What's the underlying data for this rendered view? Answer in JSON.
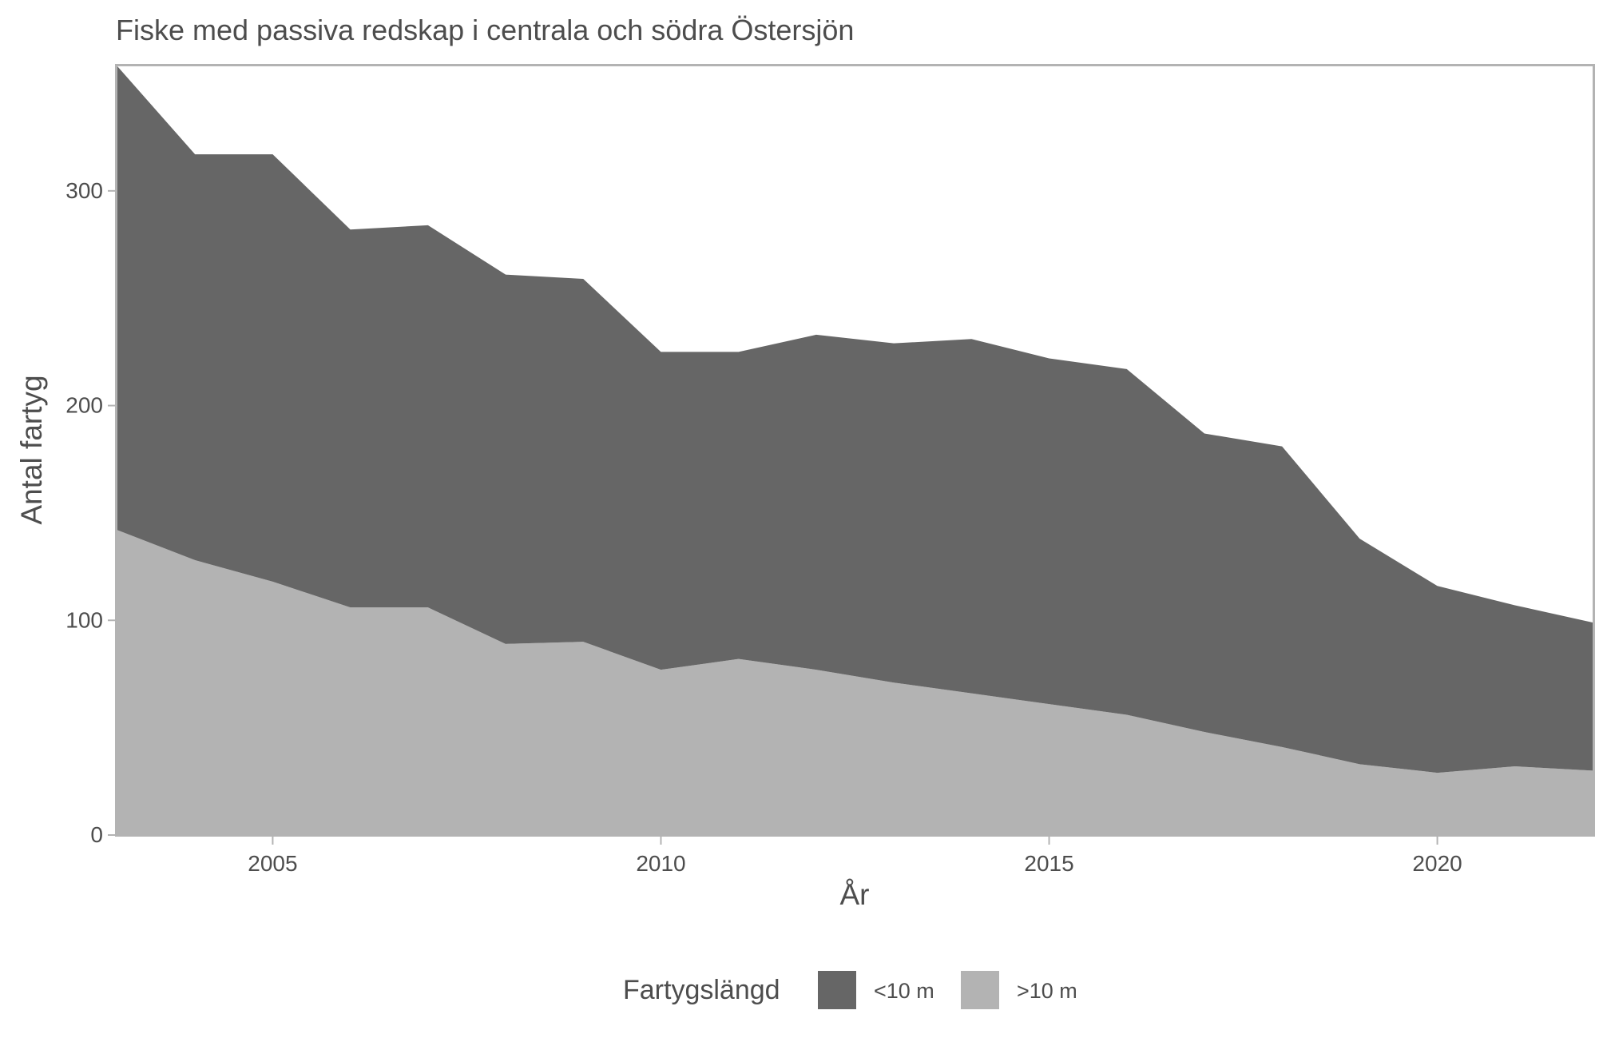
{
  "chart_data": {
    "type": "area",
    "stacked": true,
    "title": "Fiske med passiva redskap i centrala och södra Östersjön",
    "xlabel": "År",
    "ylabel": "Antal fartyg",
    "xlim": [
      2003,
      2022
    ],
    "ylim": [
      0,
      358
    ],
    "x_ticks": [
      2005,
      2010,
      2015,
      2020
    ],
    "y_ticks": [
      0,
      100,
      200,
      300
    ],
    "grid": false,
    "legend": {
      "title": "Fartygslängd",
      "position": "bottom"
    },
    "x": [
      2003,
      2004,
      2005,
      2006,
      2007,
      2008,
      2009,
      2010,
      2011,
      2012,
      2013,
      2014,
      2015,
      2016,
      2017,
      2018,
      2019,
      2020,
      2021,
      2022
    ],
    "series": [
      {
        "name": ">10 m",
        "color": "#b3b3b3",
        "values": [
          142,
          128,
          118,
          106,
          106,
          89,
          90,
          77,
          82,
          77,
          71,
          66,
          61,
          56,
          48,
          41,
          33,
          29,
          32,
          30
        ]
      },
      {
        "name": "<10 m",
        "color": "#666666",
        "values": [
          216,
          189,
          199,
          176,
          178,
          172,
          169,
          148,
          143,
          156,
          158,
          165,
          161,
          161,
          139,
          140,
          105,
          87,
          75,
          69
        ]
      }
    ],
    "legend_order": [
      "<10 m",
      ">10 m"
    ]
  }
}
